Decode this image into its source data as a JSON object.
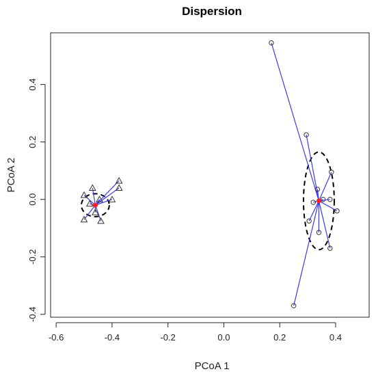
{
  "chart_data": {
    "type": "scatter",
    "title": "Dispersion",
    "xlabel": "PCoA 1",
    "ylabel": "PCoA 2",
    "xlim": [
      -0.62,
      0.52
    ],
    "ylim": [
      -0.41,
      0.58
    ],
    "xticks": [
      -0.6,
      -0.4,
      -0.2,
      0.0,
      0.2,
      0.4
    ],
    "xtick_labels": [
      "-0.6",
      "-0.4",
      "-0.2",
      "0.0",
      "0.2",
      "0.4"
    ],
    "yticks": [
      -0.4,
      -0.2,
      0.0,
      0.2,
      0.4
    ],
    "ytick_labels": [
      "-0.4",
      "-0.2",
      "0.0",
      "0.2",
      "0.4"
    ],
    "grid": false,
    "legend": "none",
    "colors": {
      "spoke": "#3a3af0",
      "centroid": "#ff2020",
      "ellipse": "#000000",
      "point": "#333333"
    },
    "groups": [
      {
        "marker": "triangle",
        "centroid": [
          -0.46,
          -0.02
        ],
        "ellipse": {
          "rx": 0.05,
          "ry": 0.04
        },
        "points": [
          [
            -0.47,
            0.04
          ],
          [
            -0.5,
            0.015
          ],
          [
            -0.48,
            -0.015
          ],
          [
            -0.5,
            -0.07
          ],
          [
            -0.44,
            -0.075
          ],
          [
            -0.375,
            0.065
          ],
          [
            -0.375,
            0.04
          ],
          [
            -0.4,
            0.0
          ],
          [
            -0.445,
            0.0
          ],
          [
            -0.46,
            -0.045
          ]
        ]
      },
      {
        "marker": "circle",
        "centroid": [
          0.34,
          -0.005
        ],
        "ellipse": {
          "rx": 0.055,
          "ry": 0.17
        },
        "points": [
          [
            0.17,
            0.545
          ],
          [
            0.295,
            0.225
          ],
          [
            0.385,
            0.095
          ],
          [
            0.38,
            0.0
          ],
          [
            0.405,
            -0.04
          ],
          [
            0.34,
            -0.115
          ],
          [
            0.305,
            -0.075
          ],
          [
            0.38,
            -0.17
          ],
          [
            0.25,
            -0.37
          ],
          [
            0.355,
            0.0
          ],
          [
            0.335,
            0.035
          ],
          [
            0.32,
            -0.01
          ]
        ]
      }
    ]
  }
}
